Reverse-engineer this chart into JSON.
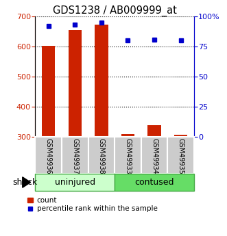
{
  "title": "GDS1238 / AB009999_at",
  "samples": [
    "GSM49936",
    "GSM49937",
    "GSM49938",
    "GSM49933",
    "GSM49934",
    "GSM49935"
  ],
  "bar_values": [
    603,
    655,
    672,
    310,
    340,
    307
  ],
  "bar_baseline": 300,
  "percentile_values": [
    92,
    93,
    95,
    80,
    81,
    80
  ],
  "bar_color": "#cc2200",
  "marker_color": "#0000cc",
  "ylim_left": [
    300,
    700
  ],
  "ylim_right": [
    0,
    100
  ],
  "yticks_left": [
    300,
    400,
    500,
    600,
    700
  ],
  "yticks_right": [
    0,
    25,
    50,
    75,
    100
  ],
  "yticklabels_right": [
    "0",
    "25",
    "50",
    "75",
    "100%"
  ],
  "groups": [
    {
      "label": "uninjured",
      "indices": [
        0,
        1,
        2
      ],
      "color": "#ccffcc"
    },
    {
      "label": "contused",
      "indices": [
        3,
        4,
        5
      ],
      "color": "#66dd66"
    }
  ],
  "shock_label": "shock",
  "legend_count_label": "count",
  "legend_pct_label": "percentile rank within the sample",
  "label_area_color": "#cccccc",
  "bar_width": 0.5,
  "fig_width": 3.31,
  "fig_height": 3.45,
  "dpi": 100
}
